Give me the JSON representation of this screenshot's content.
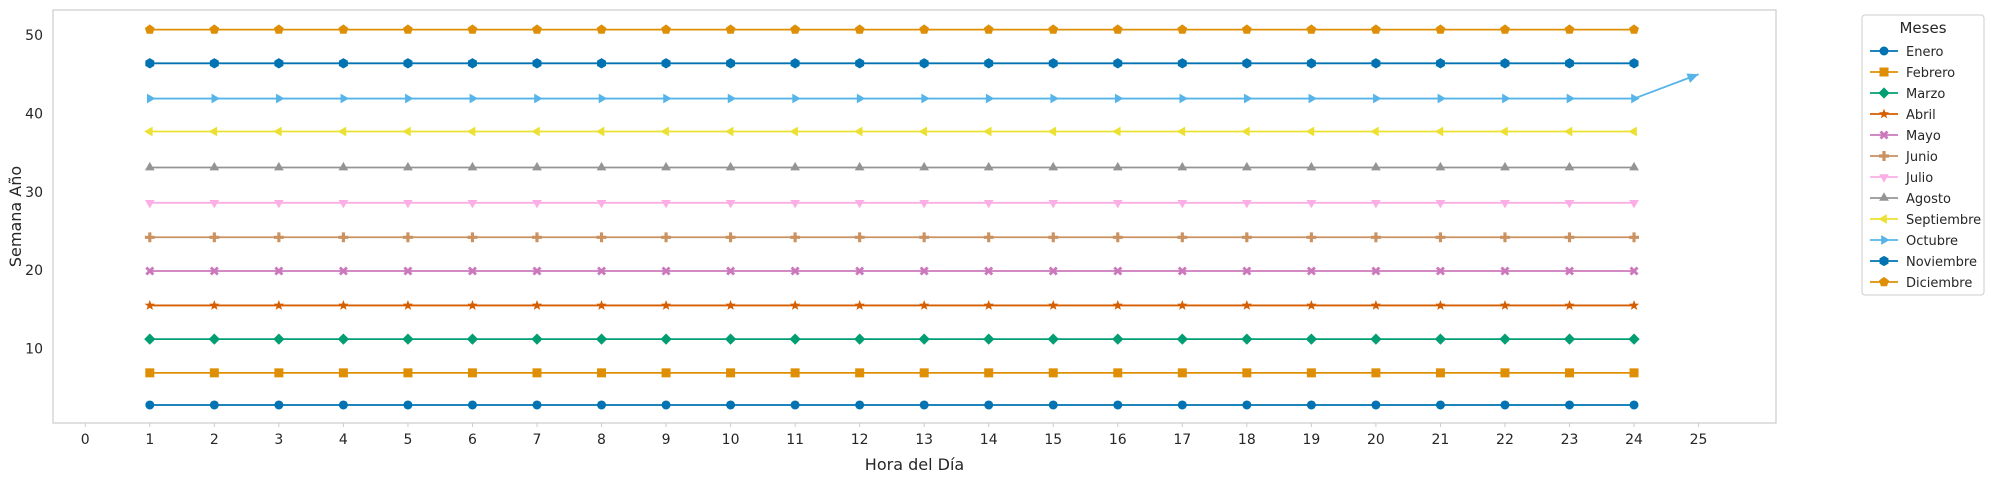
{
  "chart_data": {
    "type": "line",
    "title": "",
    "xlabel": "Hora del Día",
    "ylabel": "Semana Año",
    "xlim": [
      -0.5,
      26.2
    ],
    "ylim": [
      0.5,
      53.2
    ],
    "x_ticks": [
      0,
      1,
      2,
      3,
      4,
      5,
      6,
      7,
      8,
      9,
      10,
      11,
      12,
      13,
      14,
      15,
      16,
      17,
      18,
      19,
      20,
      21,
      22,
      23,
      24,
      25
    ],
    "y_ticks": [
      10,
      20,
      30,
      40,
      50
    ],
    "grid": false,
    "legend": {
      "title": "Meses",
      "position": "outside-right"
    },
    "x": [
      1,
      2,
      3,
      4,
      5,
      6,
      7,
      8,
      9,
      10,
      11,
      12,
      13,
      14,
      15,
      16,
      17,
      18,
      19,
      20,
      21,
      22,
      23,
      24
    ],
    "series": [
      {
        "name": "Enero",
        "y": 2.8,
        "color": "#0173b2",
        "marker": "circle"
      },
      {
        "name": "Febrero",
        "y": 6.9,
        "color": "#de8f05",
        "marker": "square"
      },
      {
        "name": "Marzo",
        "y": 11.2,
        "color": "#029e73",
        "marker": "diamond"
      },
      {
        "name": "Abril",
        "y": 15.5,
        "color": "#d55e00",
        "marker": "star"
      },
      {
        "name": "Mayo",
        "y": 19.9,
        "color": "#cc78bc",
        "marker": "x"
      },
      {
        "name": "Junio",
        "y": 24.2,
        "color": "#ca9161",
        "marker": "plus"
      },
      {
        "name": "Julio",
        "y": 28.6,
        "color": "#fbafe4",
        "marker": "triangle-down"
      },
      {
        "name": "Agosto",
        "y": 33.1,
        "color": "#949494",
        "marker": "triangle-up"
      },
      {
        "name": "Septiembre",
        "y": 37.7,
        "color": "#ece133",
        "marker": "triangle-left"
      },
      {
        "name": "Octubre",
        "y": 41.9,
        "color": "#56b4e9",
        "marker": "triangle-right"
      },
      {
        "name": "Noviembre",
        "y": 46.4,
        "color": "#0173b2",
        "marker": "hexagon"
      },
      {
        "name": "Diciembre",
        "y": 50.7,
        "color": "#de8f05",
        "marker": "pentagon"
      }
    ],
    "annotations": [
      {
        "type": "arrow",
        "from": [
          24,
          41.9
        ],
        "to": [
          25,
          45
        ],
        "color": "#56b4e9"
      }
    ]
  }
}
